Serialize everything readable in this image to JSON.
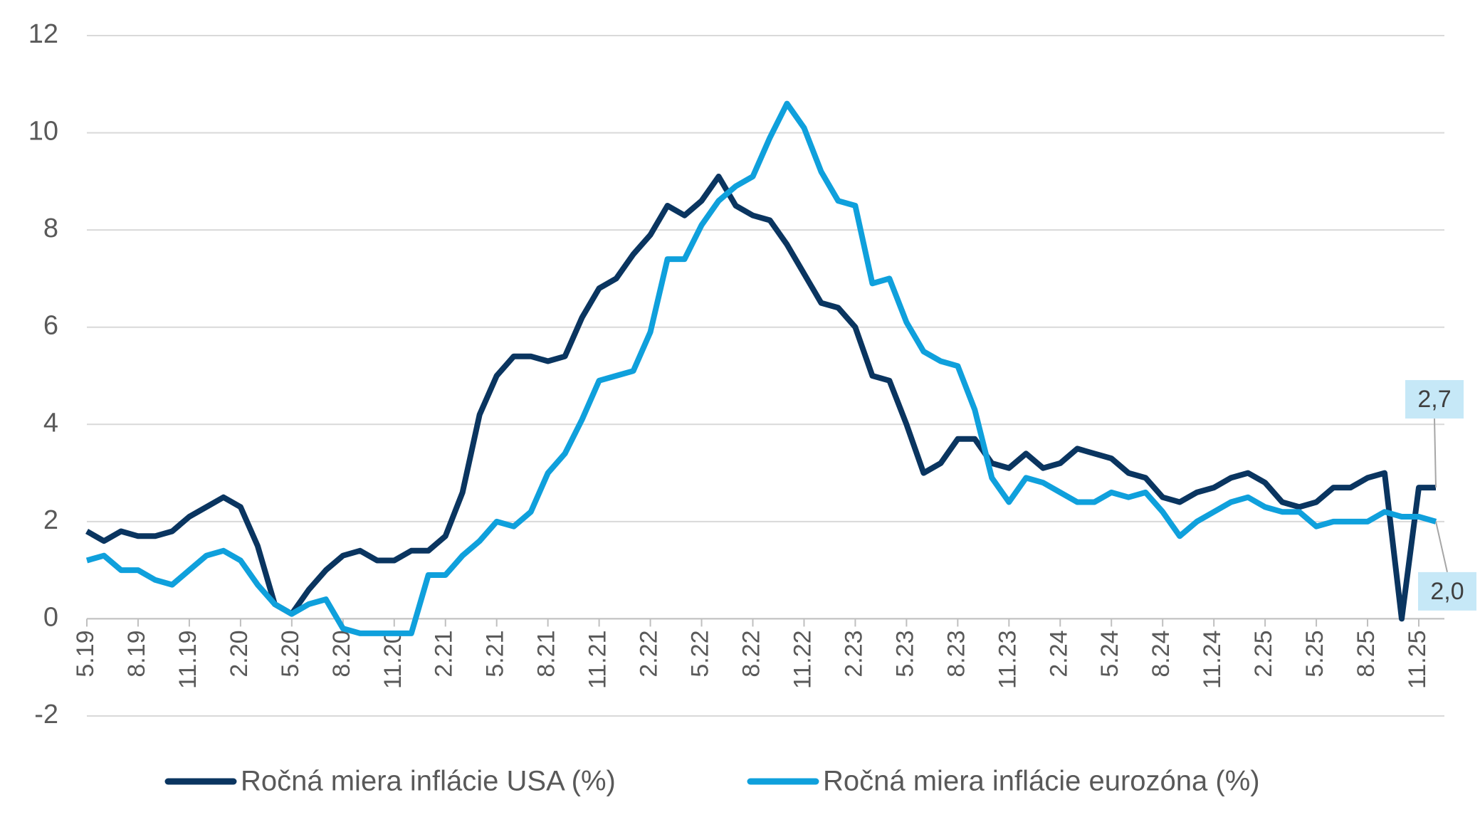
{
  "chart_data": {
    "type": "line",
    "categories": [
      "5.19",
      null,
      null,
      "8.19",
      null,
      null,
      "11.19",
      null,
      null,
      "2.20",
      null,
      null,
      "5.20",
      null,
      null,
      "8.20",
      null,
      null,
      "11.20",
      null,
      null,
      "2.21",
      null,
      null,
      "5.21",
      null,
      null,
      "8.21",
      null,
      null,
      "11.21",
      null,
      null,
      "2.22",
      null,
      null,
      "5.22",
      null,
      null,
      "8.22",
      null,
      null,
      "11.22",
      null,
      null,
      "2.23",
      null,
      null,
      "5.23",
      null,
      null,
      "8.23",
      null,
      null,
      "11.23",
      null,
      null,
      "2.24",
      null,
      null,
      "5.24",
      null,
      null,
      "8.24",
      null,
      null,
      "11.24",
      null,
      null,
      "2.25",
      null,
      null,
      "5.25",
      null,
      null,
      "8.25",
      null,
      null,
      "11.25",
      null
    ],
    "series": [
      {
        "name": "Ročná miera inflácie USA (%)",
        "color": "#0a3560",
        "end_label": "2,7",
        "values": [
          1.8,
          1.6,
          1.8,
          1.7,
          1.7,
          1.8,
          2.1,
          2.3,
          2.5,
          2.3,
          1.5,
          0.3,
          0.1,
          0.6,
          1.0,
          1.3,
          1.4,
          1.2,
          1.2,
          1.4,
          1.4,
          1.7,
          2.6,
          4.2,
          5.0,
          5.4,
          5.4,
          5.3,
          5.4,
          6.2,
          6.8,
          7.0,
          7.5,
          7.9,
          8.5,
          8.3,
          8.6,
          9.1,
          8.5,
          8.3,
          8.2,
          7.7,
          7.1,
          6.5,
          6.4,
          6.0,
          5.0,
          4.9,
          4.0,
          3.0,
          3.2,
          3.7,
          3.7,
          3.2,
          3.1,
          3.4,
          3.1,
          3.2,
          3.5,
          3.4,
          3.3,
          3.0,
          2.9,
          2.5,
          2.4,
          2.6,
          2.7,
          2.9,
          3.0,
          2.8,
          2.4,
          2.3,
          2.4,
          2.7,
          2.7,
          2.9,
          3.0,
          0,
          2.7,
          2.7
        ]
      },
      {
        "name": "Ročná miera inflácie eurozóna (%)",
        "color": "#0fa0dc",
        "end_label": "2,0",
        "values": [
          1.2,
          1.3,
          1.0,
          1.0,
          0.8,
          0.7,
          1.0,
          1.3,
          1.4,
          1.2,
          0.7,
          0.3,
          0.1,
          0.3,
          0.4,
          -0.2,
          -0.3,
          -0.3,
          -0.3,
          -0.3,
          0.9,
          0.9,
          1.3,
          1.6,
          2.0,
          1.9,
          2.2,
          3.0,
          3.4,
          4.1,
          4.9,
          5.0,
          5.1,
          5.9,
          7.4,
          7.4,
          8.1,
          8.6,
          8.9,
          9.1,
          9.9,
          10.6,
          10.1,
          9.2,
          8.6,
          8.5,
          6.9,
          7.0,
          6.1,
          5.5,
          5.3,
          5.2,
          4.3,
          2.9,
          2.4,
          2.9,
          2.8,
          2.6,
          2.4,
          2.4,
          2.6,
          2.5,
          2.6,
          2.2,
          1.7,
          2.0,
          2.2,
          2.4,
          2.5,
          2.3,
          2.2,
          2.2,
          1.9,
          2.0,
          2.0,
          2.0,
          2.2,
          2.1,
          2.1,
          2.0
        ]
      }
    ],
    "ylim": [
      -2,
      12
    ],
    "yticks": [
      -2,
      0,
      2,
      4,
      6,
      8,
      10,
      12
    ],
    "grid": true,
    "legend": "bottom"
  }
}
